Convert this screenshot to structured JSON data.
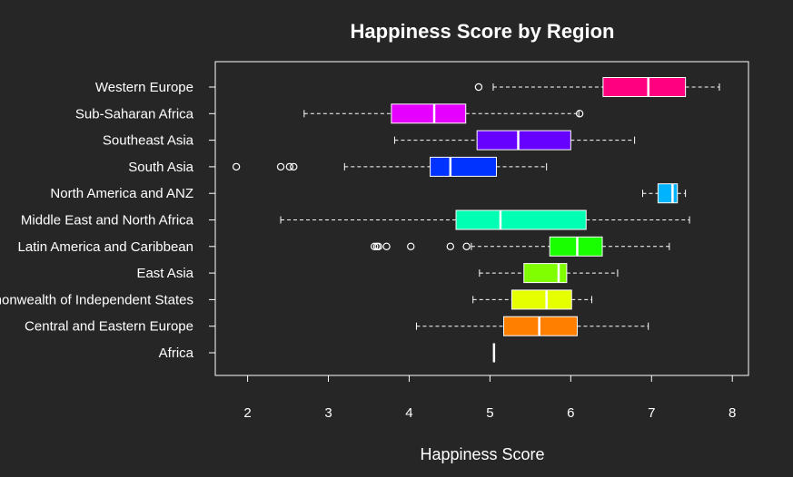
{
  "chart_data": {
    "type": "boxplot",
    "orientation": "horizontal",
    "title": "Happiness Score by Region",
    "xlabel": "Happiness Score",
    "ylabel": "",
    "xlim": [
      1.6,
      8.2
    ],
    "xticks": [
      2,
      3,
      4,
      5,
      6,
      7,
      8
    ],
    "grid": false,
    "legend": "none",
    "categories": [
      "Africa",
      "Central and Eastern Europe",
      "Commonwealth of Independent States",
      "East Asia",
      "Latin America and Caribbean",
      "Middle East and North Africa",
      "North America and ANZ",
      "South Asia",
      "Southeast Asia",
      "Sub-Saharan Africa",
      "Western Europe"
    ],
    "boxes": [
      {
        "min": 5.05,
        "q1": 5.05,
        "median": 5.05,
        "q3": 5.05,
        "max": 5.05,
        "outliers": [],
        "color": "#FFFFFF"
      },
      {
        "min": 4.09,
        "q1": 5.17,
        "median": 5.61,
        "q3": 6.08,
        "max": 6.96,
        "outliers": [],
        "color": "#FF8000"
      },
      {
        "min": 4.79,
        "q1": 5.27,
        "median": 5.7,
        "q3": 6.01,
        "max": 6.26,
        "outliers": [],
        "color": "#E6FF00"
      },
      {
        "min": 4.87,
        "q1": 5.42,
        "median": 5.85,
        "q3": 5.95,
        "max": 6.58,
        "outliers": [],
        "color": "#80FF00"
      },
      {
        "min": 4.77,
        "q1": 5.74,
        "median": 6.08,
        "q3": 6.39,
        "max": 7.22,
        "outliers": [
          3.57,
          3.6,
          3.62,
          3.72,
          4.02,
          4.51,
          4.71
        ],
        "color": "#1AFF00"
      },
      {
        "min": 2.41,
        "q1": 4.58,
        "median": 5.13,
        "q3": 6.19,
        "max": 7.47,
        "outliers": [],
        "color": "#00FFB3"
      },
      {
        "min": 6.89,
        "q1": 7.08,
        "median": 7.26,
        "q3": 7.32,
        "max": 7.42,
        "outliers": [],
        "color": "#00B3FF"
      },
      {
        "min": 3.2,
        "q1": 4.26,
        "median": 4.51,
        "q3": 5.08,
        "max": 5.7,
        "outliers": [
          1.86,
          2.41,
          2.52,
          2.57
        ],
        "color": "#0033FF"
      },
      {
        "min": 3.82,
        "q1": 4.84,
        "median": 5.35,
        "q3": 6.0,
        "max": 6.79,
        "outliers": [],
        "color": "#6600FF"
      },
      {
        "min": 2.7,
        "q1": 3.78,
        "median": 4.31,
        "q3": 4.7,
        "max": 6.1,
        "outliers": [
          6.11
        ],
        "color": "#E600FF"
      },
      {
        "min": 5.04,
        "q1": 6.4,
        "median": 6.96,
        "q3": 7.42,
        "max": 7.84,
        "outliers": [
          4.86
        ],
        "color": "#FF0080"
      }
    ]
  }
}
